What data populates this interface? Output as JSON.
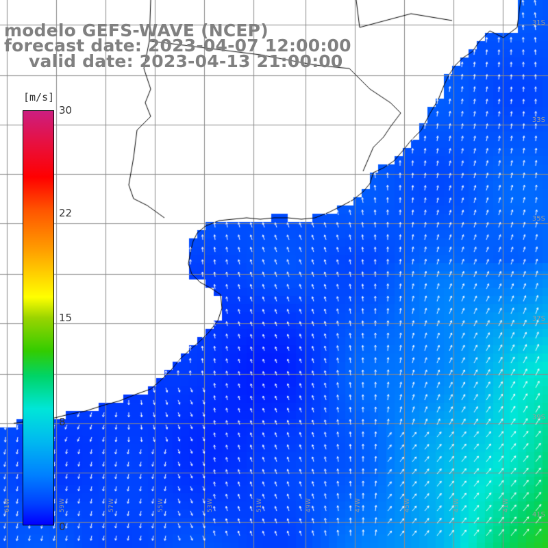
{
  "title": {
    "line1": "modelo GEFS-WAVE (NCEP)",
    "line2": "forecast date: 2023-04-07 12:00:00",
    "line3": "valid date: 2023-04-13 21:00:00"
  },
  "colorbar": {
    "unit": "[m/s]",
    "ticks": [
      {
        "label": "30",
        "value": 30
      },
      {
        "label": "22",
        "value": 22
      },
      {
        "label": "15",
        "value": 15
      },
      {
        "label": "8",
        "value": 8
      },
      {
        "label": "0",
        "value": 0
      }
    ],
    "colors": [
      "#cc1e80",
      "#ff0000",
      "#ff9900",
      "#ffff00",
      "#33cc00",
      "#00e6d8",
      "#00b8f0",
      "#0040ff",
      "#0000ff"
    ]
  },
  "map": {
    "variable": "wind speed and direction",
    "land_color": "#ffffff",
    "coastline_color": "#000000",
    "grid_color": "#8a8a8a",
    "lat_labels": [
      "31S",
      "33S",
      "35S",
      "37S",
      "39S",
      "41S"
    ],
    "lon_labels": [
      "61W",
      "59W",
      "57W",
      "55W",
      "53W",
      "51W",
      "49W",
      "47W",
      "45W",
      "43W",
      "41W"
    ]
  }
}
